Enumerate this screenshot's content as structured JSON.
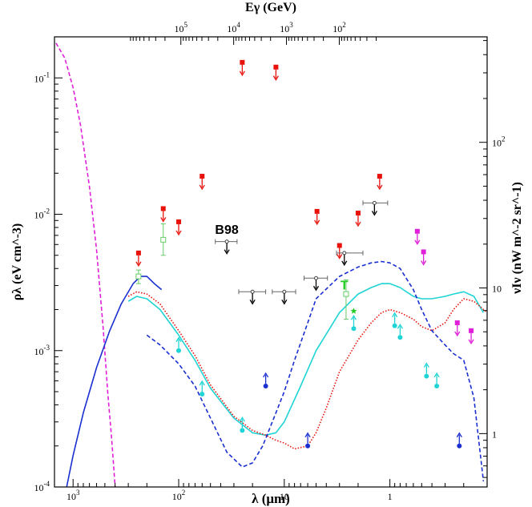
{
  "chart_data": {
    "type": "scatter",
    "x_axis": {
      "label": "λ (μm)",
      "scale": "log",
      "reversed": true,
      "range": [
        1500,
        0.12
      ],
      "ticks": [
        {
          "value": 1000,
          "label": "10^3"
        },
        {
          "value": 100,
          "label": "10^2"
        },
        {
          "value": 10,
          "label": "10"
        },
        {
          "value": 1,
          "label": "1"
        }
      ]
    },
    "x_axis_top": {
      "label": "Eγ (GeV)",
      "scale": "log",
      "ticks": [
        {
          "value": 100000,
          "label": "10^5"
        },
        {
          "value": 10000,
          "label": "10^4"
        },
        {
          "value": 1000,
          "label": "10^3"
        },
        {
          "value": 100,
          "label": "10^2"
        }
      ]
    },
    "y_axis": {
      "label": "ρλ (eV cm^-3)",
      "scale": "log",
      "range": [
        0.0001,
        0.2
      ],
      "ticks": [
        {
          "value": 0.1,
          "label": "10^-1"
        },
        {
          "value": 0.01,
          "label": "10^-2"
        },
        {
          "value": 0.001,
          "label": "10^-3"
        },
        {
          "value": 0.0001,
          "label": "10^-4"
        }
      ]
    },
    "y_axis_right": {
      "label": "νIν (nW m^-2 sr^-1)",
      "scale": "log",
      "ticks": [
        {
          "value": 100,
          "label": "10^2"
        },
        {
          "value": 10,
          "label": "10"
        },
        {
          "value": 1,
          "label": "1"
        }
      ]
    },
    "annotations": [
      {
        "text": "B98",
        "x": 35,
        "y": 0.0072,
        "color": "#000000"
      },
      {
        "text": "T",
        "x": 2.7,
        "y": 0.0028,
        "color": "#22cc22"
      }
    ],
    "colors": {
      "red": "#e8120a",
      "cyan": "#1fd4d4",
      "blue": "#1a2fd0",
      "magenta": "#e020d8",
      "green": "#66cc66",
      "black": "#000000",
      "gray": "#777777"
    },
    "series": [
      {
        "style": "dashed-line",
        "color": "#e020d8",
        "x": [
          1450,
          1200,
          1000,
          850,
          700,
          600,
          520,
          470,
          430,
          400
        ],
        "y": [
          0.18,
          0.14,
          0.085,
          0.045,
          0.016,
          0.0055,
          0.0015,
          0.0005,
          0.00022,
          0.0001
        ]
      },
      {
        "style": "solid-line",
        "color": "#1a2fd0",
        "x": [
          1150,
          1000,
          800,
          600,
          450,
          350,
          270,
          230,
          200,
          170,
          145
        ],
        "y": [
          0.0001,
          0.00017,
          0.00035,
          0.00075,
          0.0014,
          0.0022,
          0.0031,
          0.0035,
          0.0035,
          0.0031,
          0.0028
        ]
      },
      {
        "style": "solid-line",
        "color": "#1fd4d4",
        "x": [
          300,
          250,
          200,
          150,
          100,
          70,
          50,
          30,
          20,
          15,
          12,
          10,
          7,
          5,
          3,
          2,
          1.5,
          1.2,
          1,
          0.8,
          0.6,
          0.5,
          0.4,
          0.3,
          0.25,
          0.2,
          0.16,
          0.13
        ],
        "y": [
          0.0023,
          0.0025,
          0.0024,
          0.002,
          0.0013,
          0.00085,
          0.00053,
          0.00032,
          0.00025,
          0.00024,
          0.00025,
          0.0003,
          0.00055,
          0.001,
          0.0019,
          0.0026,
          0.0029,
          0.0031,
          0.0031,
          0.0029,
          0.0025,
          0.0024,
          0.0024,
          0.0025,
          0.0026,
          0.0027,
          0.0025,
          0.0019
        ]
      },
      {
        "style": "dotted-line",
        "color": "#e8120a",
        "x": [
          300,
          250,
          200,
          150,
          100,
          70,
          50,
          30,
          20,
          15,
          12,
          10,
          8,
          6,
          5,
          4,
          3,
          2,
          1.5,
          1.2,
          1,
          0.8,
          0.6,
          0.5,
          0.4,
          0.3,
          0.25,
          0.2,
          0.16,
          0.12
        ],
        "y": [
          0.0025,
          0.0027,
          0.0026,
          0.0022,
          0.0014,
          0.00092,
          0.00056,
          0.00033,
          0.00026,
          0.00024,
          0.00022,
          0.00021,
          0.00019,
          0.0002,
          0.00025,
          0.00038,
          0.0007,
          0.0012,
          0.0016,
          0.0019,
          0.002,
          0.0019,
          0.0017,
          0.0015,
          0.0014,
          0.0016,
          0.002,
          0.0024,
          0.0023,
          0.0019
        ]
      },
      {
        "style": "dashed-line",
        "color": "#1a2fd0",
        "x": [
          200,
          150,
          100,
          70,
          50,
          35,
          25,
          20,
          16,
          12,
          10,
          8,
          6,
          5,
          3,
          2,
          1.5,
          1.2,
          1,
          0.8,
          0.6,
          0.5,
          0.4,
          0.3,
          0.25,
          0.2,
          0.16,
          0.14,
          0.13
        ],
        "y": [
          0.0013,
          0.0011,
          0.0008,
          0.00055,
          0.00032,
          0.00018,
          0.00014,
          0.00015,
          0.0002,
          0.00035,
          0.0005,
          0.00085,
          0.0016,
          0.0024,
          0.0035,
          0.0041,
          0.0044,
          0.0045,
          0.0044,
          0.004,
          0.0028,
          0.002,
          0.0014,
          0.0011,
          0.00095,
          0.00085,
          0.00045,
          0.00018,
          0.00011
        ]
      },
      {
        "style": "upper-limit",
        "marker": "filled-square",
        "color": "#e8120a",
        "points": [
          {
            "x": 240,
            "y": 0.0052
          },
          {
            "x": 140,
            "y": 0.011
          },
          {
            "x": 100,
            "y": 0.0088
          },
          {
            "x": 60,
            "y": 0.019
          },
          {
            "x": 25,
            "y": 0.13
          },
          {
            "x": 12,
            "y": 0.12
          },
          {
            "x": 4.9,
            "y": 0.0105
          },
          {
            "x": 3.0,
            "y": 0.0059
          },
          {
            "x": 2.0,
            "y": 0.0102
          },
          {
            "x": 1.25,
            "y": 0.019
          }
        ]
      },
      {
        "style": "upper-limit",
        "marker": "filled-square",
        "color": "#e020d8",
        "points": [
          {
            "x": 0.55,
            "y": 0.0075
          },
          {
            "x": 0.48,
            "y": 0.0053
          },
          {
            "x": 0.23,
            "y": 0.0016
          },
          {
            "x": 0.17,
            "y": 0.0014
          }
        ]
      },
      {
        "style": "upper-limit-with-xbar",
        "marker": "open-circle",
        "color": "#000000",
        "points": [
          {
            "x": 35,
            "y": 0.0063,
            "xlo": 45,
            "xhi": 28
          },
          {
            "x": 20,
            "y": 0.0027,
            "xlo": 27,
            "xhi": 15
          },
          {
            "x": 10,
            "y": 0.0027,
            "xlo": 13,
            "xhi": 7.8
          },
          {
            "x": 5.0,
            "y": 0.0034,
            "xlo": 6.5,
            "xhi": 3.9
          },
          {
            "x": 2.7,
            "y": 0.0052,
            "xlo": 3.2,
            "xhi": 1.8
          },
          {
            "x": 1.4,
            "y": 0.0121,
            "xlo": 1.8,
            "xhi": 1.05
          }
        ]
      },
      {
        "style": "lower-limit",
        "marker": "filled-circle",
        "color": "#1fd4d4",
        "points": [
          {
            "x": 100,
            "y": 0.001
          },
          {
            "x": 60,
            "y": 0.00048
          },
          {
            "x": 25,
            "y": 0.00026
          },
          {
            "x": 2.2,
            "y": 0.00145
          },
          {
            "x": 0.9,
            "y": 0.00152
          },
          {
            "x": 0.8,
            "y": 0.00125
          },
          {
            "x": 0.45,
            "y": 0.00065
          },
          {
            "x": 0.36,
            "y": 0.00055
          }
        ]
      },
      {
        "style": "lower-limit",
        "marker": "filled-circle",
        "color": "#1a2fd0",
        "points": [
          {
            "x": 15,
            "y": 0.00055
          },
          {
            "x": 6.0,
            "y": 0.0002
          },
          {
            "x": 0.22,
            "y": 0.0002
          }
        ]
      },
      {
        "style": "error-bar",
        "marker": "open-square",
        "color": "#66cc66",
        "points": [
          {
            "x": 240,
            "y": 0.0035,
            "ylo": 0.0031,
            "yhi": 0.0039
          },
          {
            "x": 140,
            "y": 0.0065,
            "ylo": 0.005,
            "yhi": 0.0085
          },
          {
            "x": 2.6,
            "y": 0.0026,
            "ylo": 0.0017,
            "yhi": 0.0033
          }
        ]
      },
      {
        "style": "star",
        "marker": "star",
        "color": "#22cc22",
        "points": [
          {
            "x": 2.2,
            "y": 0.00195
          }
        ]
      }
    ]
  }
}
